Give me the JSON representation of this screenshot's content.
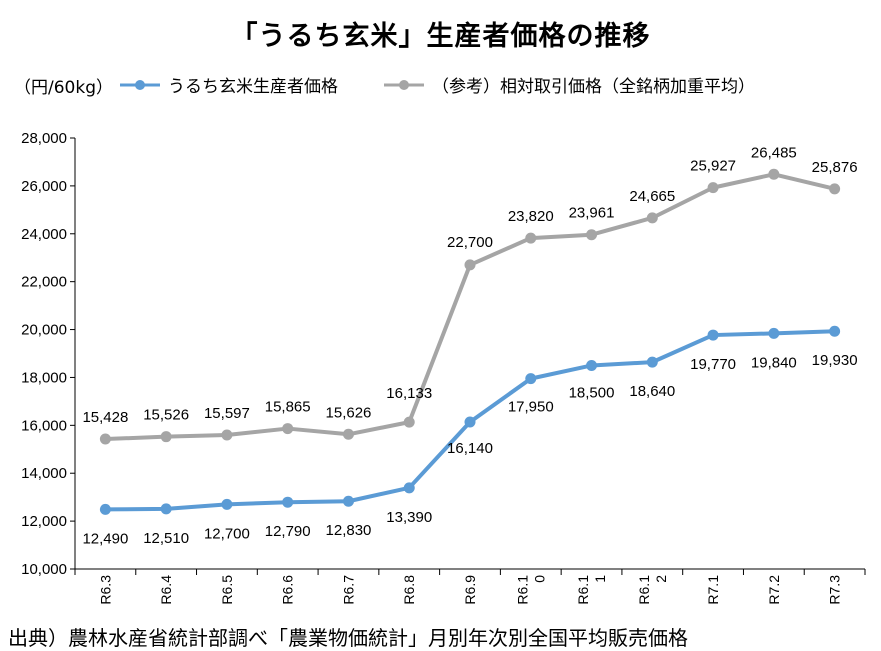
{
  "title": "「うるち玄米」生産者価格の推移",
  "unit_label": "（円/60kg）",
  "source": "出典）農林水産省統計部調べ「農業物価統計」月別年次別全国平均販売価格",
  "colors": {
    "series_a": "#5b9bd5",
    "series_b": "#a5a5a5",
    "axis": "#000000"
  },
  "chart_data": {
    "type": "line",
    "x": [
      "R6.3",
      "R6.4",
      "R6.5",
      "R6.6",
      "R6.7",
      "R6.8",
      "R6.9",
      "R6.10",
      "R6.11",
      "R6.12",
      "R7.1",
      "R7.2",
      "R7.3"
    ],
    "x_tick_lines": [
      [
        "R6.3"
      ],
      [
        "R6.4"
      ],
      [
        "R6.5"
      ],
      [
        "R6.6"
      ],
      [
        "R6.7"
      ],
      [
        "R6.8"
      ],
      [
        "R6.9"
      ],
      [
        "R6.1",
        "0"
      ],
      [
        "R6.1",
        "1"
      ],
      [
        "R6.1",
        "2"
      ],
      [
        "R7.1"
      ],
      [
        "R7.2"
      ],
      [
        "R7.3"
      ]
    ],
    "y_ticks": [
      "10,000",
      "12,000",
      "14,000",
      "16,000",
      "18,000",
      "20,000",
      "22,000",
      "24,000",
      "26,000",
      "28,000"
    ],
    "ylim": [
      10000,
      28000
    ],
    "series": [
      {
        "name": "うるち玄米生産者価格",
        "values": [
          12490,
          12510,
          12700,
          12790,
          12830,
          13390,
          16140,
          17950,
          18500,
          18640,
          19770,
          19840,
          19930
        ],
        "labels": [
          "12,490",
          "12,510",
          "12,700",
          "12,790",
          "12,830",
          "13,390",
          "16,140",
          "17,950",
          "18,500",
          "18,640",
          "19,770",
          "19,840",
          "19,930"
        ]
      },
      {
        "name": "（参考）相対取引価格（全銘柄加重平均）",
        "values": [
          15428,
          15526,
          15597,
          15865,
          15626,
          16133,
          22700,
          23820,
          23961,
          24665,
          25927,
          26485,
          25876
        ],
        "labels": [
          "15,428",
          "15,526",
          "15,597",
          "15,865",
          "15,626",
          "16,133",
          "22,700",
          "23,820",
          "23,961",
          "24,665",
          "25,927",
          "26,485",
          "25,876"
        ]
      }
    ],
    "grid": false,
    "legend": "top"
  }
}
